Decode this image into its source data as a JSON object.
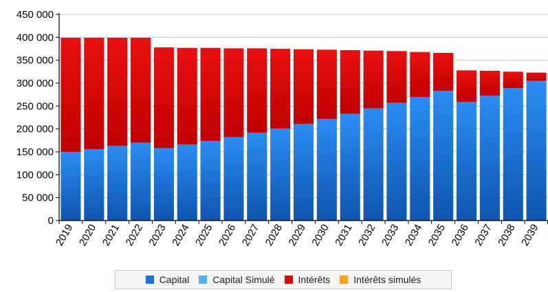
{
  "chart_data": {
    "type": "bar",
    "stacked": true,
    "categories": [
      "2019",
      "2020",
      "2021",
      "2022",
      "2023",
      "2024",
      "2025",
      "2026",
      "2027",
      "2028",
      "2029",
      "2030",
      "2031",
      "2032",
      "2033",
      "2034",
      "2035",
      "2036",
      "2037",
      "2038",
      "2039"
    ],
    "series": [
      {
        "name": "Capital",
        "color": "#1a73d9",
        "values": [
          150000,
          156000,
          163000,
          170000,
          158000,
          166000,
          174000,
          182000,
          192000,
          201000,
          211000,
          222000,
          233000,
          245000,
          257000,
          270000,
          283000,
          259000,
          273000,
          289000,
          305000
        ]
      },
      {
        "name": "Capital Simulé",
        "color": "#4fb3ef",
        "values": [
          0,
          0,
          0,
          0,
          0,
          0,
          0,
          0,
          0,
          0,
          0,
          0,
          0,
          0,
          0,
          0,
          0,
          0,
          0,
          0,
          0
        ]
      },
      {
        "name": "Intérêts",
        "color": "#dd0a0a",
        "values": [
          249000,
          243000,
          236000,
          229000,
          220000,
          211000,
          203000,
          194000,
          184000,
          174000,
          163000,
          151000,
          139000,
          126000,
          113000,
          98000,
          83000,
          69000,
          54000,
          36000,
          18000
        ]
      },
      {
        "name": "Intérêts simulés",
        "color": "#ffa21a",
        "values": [
          0,
          0,
          0,
          0,
          0,
          0,
          0,
          0,
          0,
          0,
          0,
          0,
          0,
          0,
          0,
          0,
          0,
          0,
          0,
          0,
          0
        ]
      }
    ],
    "ylim": [
      0,
      450000
    ],
    "yticks": [
      "0",
      "50 000",
      "100 000",
      "150 000",
      "200 000",
      "250 000",
      "300 000",
      "350 000",
      "400 000",
      "450 000"
    ],
    "ytick_values": [
      0,
      50000,
      100000,
      150000,
      200000,
      250000,
      300000,
      350000,
      400000,
      450000
    ],
    "grid": true,
    "legend_position": "bottom"
  }
}
